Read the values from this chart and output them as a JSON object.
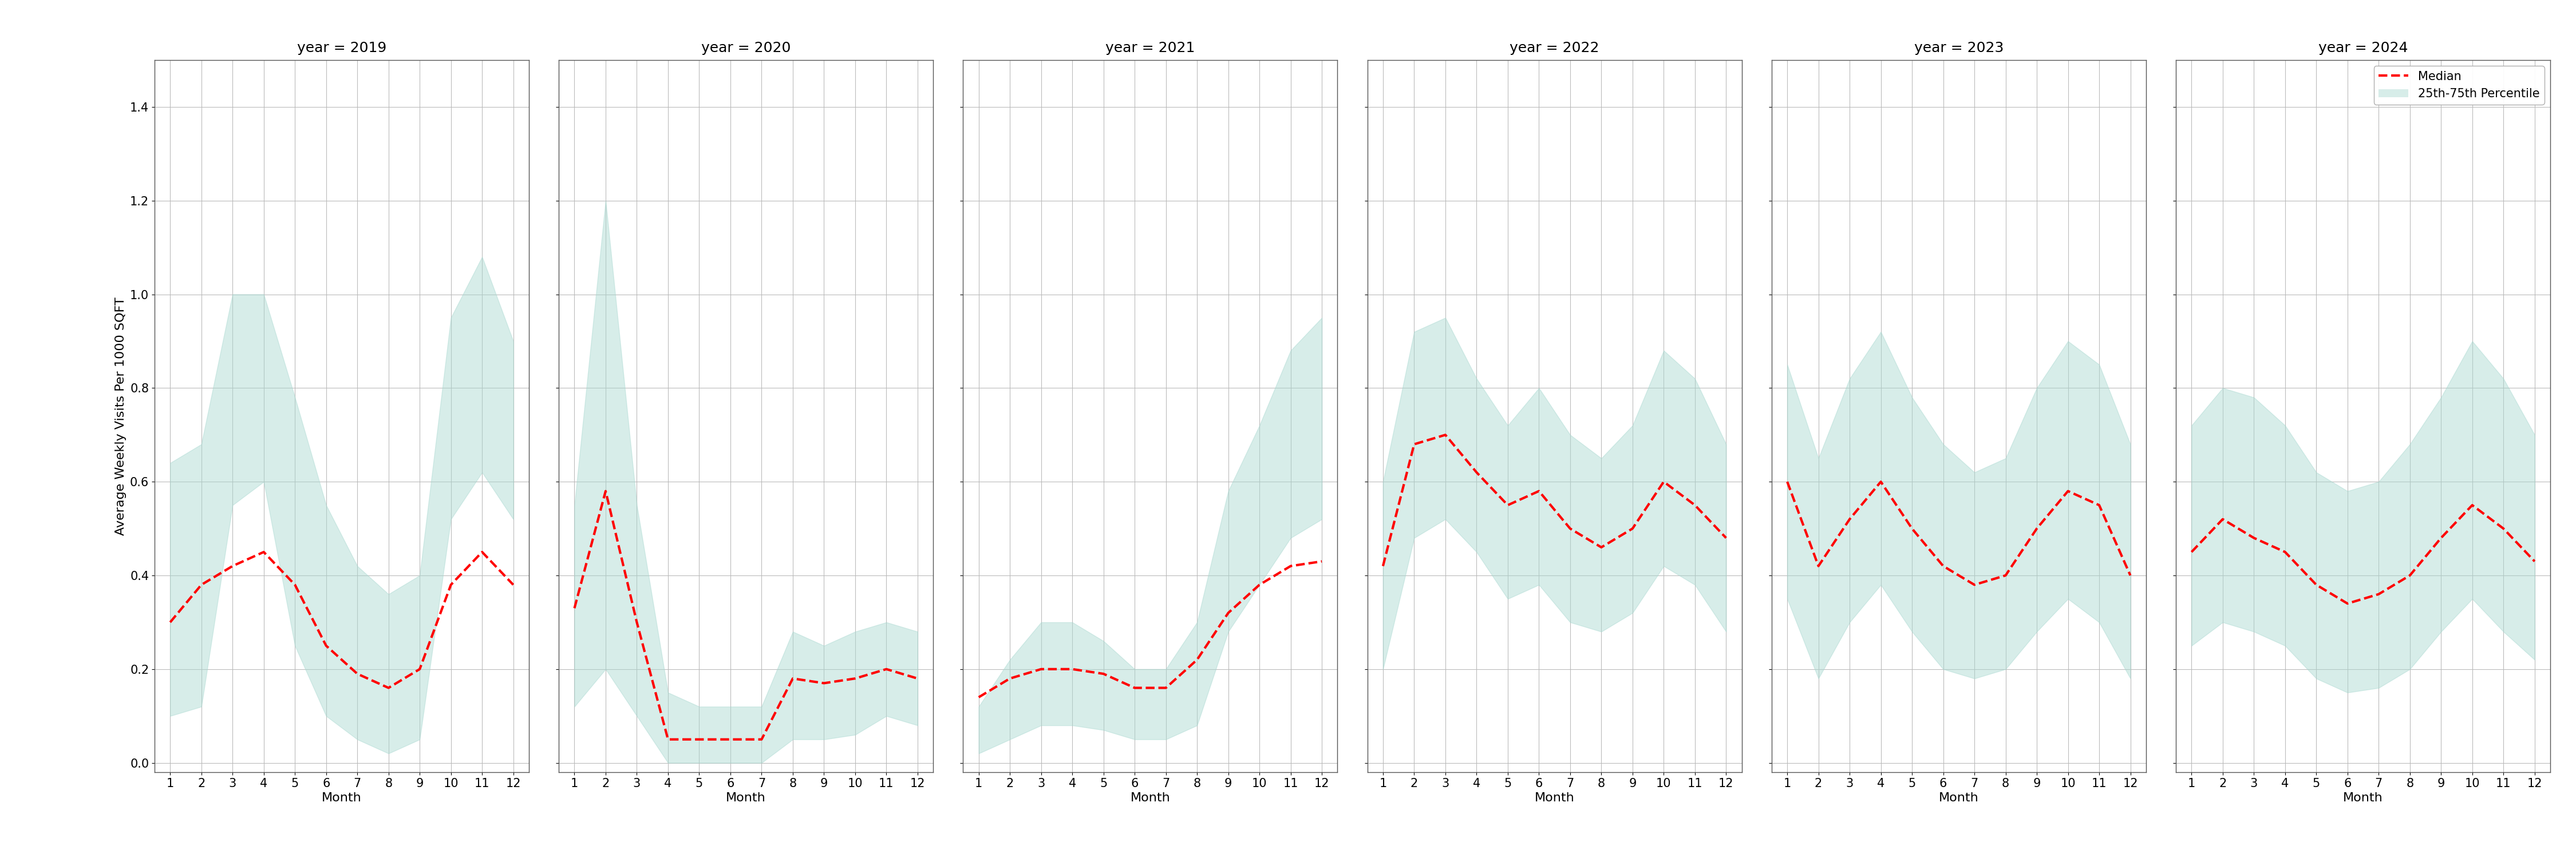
{
  "years": [
    2019,
    2020,
    2021,
    2022,
    2023,
    2024
  ],
  "months": [
    1,
    2,
    3,
    4,
    5,
    6,
    7,
    8,
    9,
    10,
    11,
    12
  ],
  "median": {
    "2019": [
      0.3,
      0.38,
      0.42,
      0.45,
      0.38,
      0.25,
      0.19,
      0.16,
      0.2,
      0.38,
      0.45,
      0.38
    ],
    "2020": [
      0.33,
      0.58,
      0.3,
      0.05,
      0.05,
      0.05,
      0.05,
      0.18,
      0.17,
      0.18,
      0.2,
      0.18
    ],
    "2021": [
      0.14,
      0.18,
      0.2,
      0.2,
      0.19,
      0.16,
      0.16,
      0.22,
      0.32,
      0.38,
      0.42,
      0.43
    ],
    "2022": [
      0.42,
      0.68,
      0.7,
      0.62,
      0.55,
      0.58,
      0.5,
      0.46,
      0.5,
      0.6,
      0.55,
      0.48
    ],
    "2023": [
      0.6,
      0.42,
      0.52,
      0.6,
      0.5,
      0.42,
      0.38,
      0.4,
      0.5,
      0.58,
      0.55,
      0.4
    ],
    "2024": [
      0.45,
      0.52,
      0.48,
      0.45,
      0.38,
      0.34,
      0.36,
      0.4,
      0.48,
      0.55,
      0.5,
      0.43
    ]
  },
  "p25": {
    "2019": [
      0.1,
      0.12,
      0.55,
      0.6,
      0.25,
      0.1,
      0.05,
      0.02,
      0.05,
      0.52,
      0.62,
      0.52
    ],
    "2020": [
      0.12,
      0.2,
      0.1,
      0.0,
      0.0,
      0.0,
      0.0,
      0.05,
      0.05,
      0.06,
      0.1,
      0.08
    ],
    "2021": [
      0.02,
      0.05,
      0.08,
      0.08,
      0.07,
      0.05,
      0.05,
      0.08,
      0.28,
      0.38,
      0.48,
      0.52
    ],
    "2022": [
      0.2,
      0.48,
      0.52,
      0.45,
      0.35,
      0.38,
      0.3,
      0.28,
      0.32,
      0.42,
      0.38,
      0.28
    ],
    "2023": [
      0.35,
      0.18,
      0.3,
      0.38,
      0.28,
      0.2,
      0.18,
      0.2,
      0.28,
      0.35,
      0.3,
      0.18
    ],
    "2024": [
      0.25,
      0.3,
      0.28,
      0.25,
      0.18,
      0.15,
      0.16,
      0.2,
      0.28,
      0.35,
      0.28,
      0.22
    ]
  },
  "p75": {
    "2019": [
      0.64,
      0.68,
      1.0,
      1.0,
      0.78,
      0.55,
      0.42,
      0.36,
      0.4,
      0.95,
      1.08,
      0.9
    ],
    "2020": [
      0.55,
      1.2,
      0.55,
      0.15,
      0.12,
      0.12,
      0.12,
      0.28,
      0.25,
      0.28,
      0.3,
      0.28
    ],
    "2021": [
      0.12,
      0.22,
      0.3,
      0.3,
      0.26,
      0.2,
      0.2,
      0.3,
      0.58,
      0.72,
      0.88,
      0.95
    ],
    "2022": [
      0.6,
      0.92,
      0.95,
      0.82,
      0.72,
      0.8,
      0.7,
      0.65,
      0.72,
      0.88,
      0.82,
      0.68
    ],
    "2023": [
      0.85,
      0.65,
      0.82,
      0.92,
      0.78,
      0.68,
      0.62,
      0.65,
      0.8,
      0.9,
      0.85,
      0.68
    ],
    "2024": [
      0.72,
      0.8,
      0.78,
      0.72,
      0.62,
      0.58,
      0.6,
      0.68,
      0.78,
      0.9,
      0.82,
      0.7
    ]
  },
  "fill_color": "#a8d8d0",
  "fill_alpha": 0.45,
  "line_color": "red",
  "line_style": "--",
  "line_width": 3.0,
  "grid_color": "#bbbbbb",
  "ylabel": "Average Weekly Visits Per 1000 SQFT",
  "xlabel": "Month",
  "ylim": [
    -0.02,
    1.5
  ],
  "yticks": [
    0.0,
    0.2,
    0.4,
    0.6,
    0.8,
    1.0,
    1.2,
    1.4
  ],
  "legend_median_label": "Median",
  "legend_fill_label": "25th-75th Percentile",
  "title_fontsize": 18,
  "label_fontsize": 16,
  "tick_fontsize": 15,
  "legend_fontsize": 15
}
